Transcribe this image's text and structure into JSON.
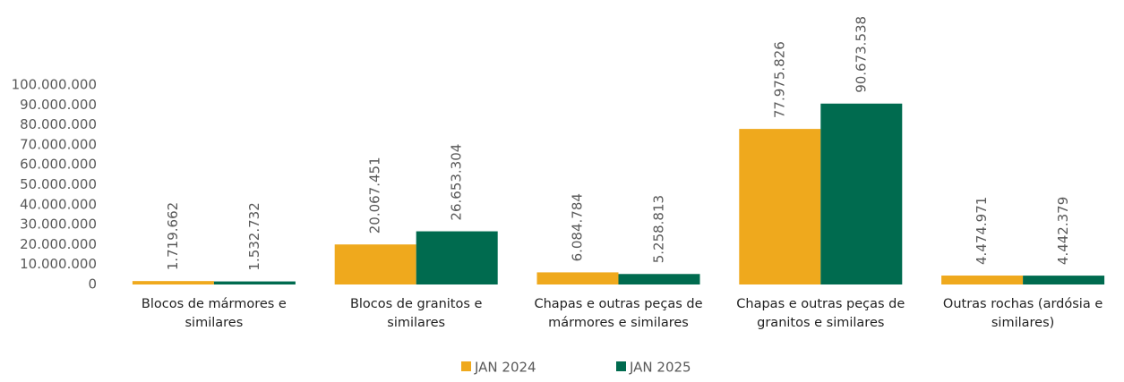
{
  "chart_data": {
    "type": "bar",
    "categories": [
      "Blocos de mármores e similares",
      "Blocos de granitos e similares",
      "Chapas e outras peças de mármores e similares",
      "Chapas e outras peças de granitos e similares",
      "Outras rochas (ardósia e similares)"
    ],
    "series": [
      {
        "name": "JAN 2024",
        "color": "#efa91d",
        "values": [
          1719662,
          20067451,
          6084784,
          77975826,
          4474971
        ],
        "value_labels": [
          "1.719.662",
          "20.067.451",
          "6.084.784",
          "77.975.826",
          "4.474.971"
        ]
      },
      {
        "name": "JAN 2025",
        "color": "#006b4f",
        "values": [
          1532732,
          26653304,
          5258813,
          90673538,
          4442379
        ],
        "value_labels": [
          "1.532.732",
          "26.653.304",
          "5.258.813",
          "90.673.538",
          "4.442.379"
        ]
      }
    ],
    "ylim": [
      0,
      100000000
    ],
    "yticks": [
      0,
      {
        "value": 10000000,
        "label": "10.000.000"
      },
      {
        "value": 20000000,
        "label": "20.000.000"
      },
      {
        "value": 30000000,
        "label": "30.000.000"
      },
      {
        "value": 40000000,
        "label": "40.000.000"
      },
      {
        "value": 50000000,
        "label": "50.000.000"
      },
      {
        "value": 60000000,
        "label": "60.000.000"
      },
      {
        "value": 70000000,
        "label": "70.000.000"
      },
      {
        "value": 80000000,
        "label": "80.000.000"
      },
      {
        "value": 90000000,
        "label": "90.000.000"
      },
      {
        "value": 100000000,
        "label": "100.000.000"
      }
    ],
    "legend": "bottom"
  }
}
